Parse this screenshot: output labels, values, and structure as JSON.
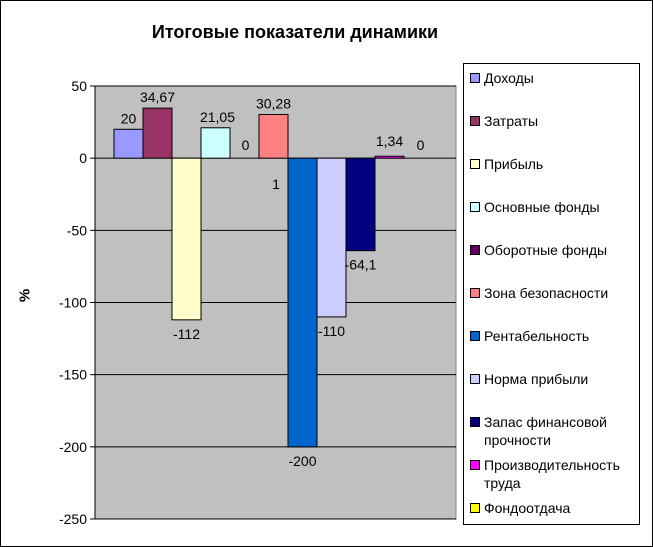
{
  "chart_data": {
    "type": "bar",
    "title": "Итоговые показатели динамики",
    "ylabel": "%",
    "xlabel": "",
    "ylim": [
      -250,
      50
    ],
    "yticks": [
      50,
      0,
      -50,
      -100,
      -150,
      -200,
      -250
    ],
    "grid": true,
    "legend_position": "right",
    "plot_background": "#C0C0C0",
    "series": [
      {
        "name": "Доходы",
        "value": 20,
        "label": "20",
        "color": "#9999FF"
      },
      {
        "name": "Затраты",
        "value": 34.67,
        "label": "34,67",
        "color": "#993366"
      },
      {
        "name": "Прибыль",
        "value": -112,
        "label": "-112",
        "color": "#FFFFCC"
      },
      {
        "name": "Основные фонды",
        "value": 21.05,
        "label": "21,05",
        "color": "#CCFFFF"
      },
      {
        "name": "Оборотные фонды",
        "value": 0,
        "label": "0",
        "color": "#660066"
      },
      {
        "name": "Зона безопасности",
        "value": 30.28,
        "label": "30,28",
        "color": "#FF8080"
      },
      {
        "name": "Рентабельность",
        "value": -200,
        "label": "-200",
        "extra_label": "1",
        "color": "#0066CC"
      },
      {
        "name": "Норма прибыли",
        "value": -110,
        "label": "-110",
        "color": "#CCCCFF"
      },
      {
        "name": "Запас финансовой прочности",
        "value": -64.1,
        "label": "-64,1",
        "color": "#000080"
      },
      {
        "name": "Производительность труда",
        "value": 1.34,
        "label": "1,34",
        "color": "#FF00FF"
      },
      {
        "name": "Фондоотдача",
        "value": 0,
        "label": "0",
        "color": "#FFFF00"
      }
    ]
  }
}
